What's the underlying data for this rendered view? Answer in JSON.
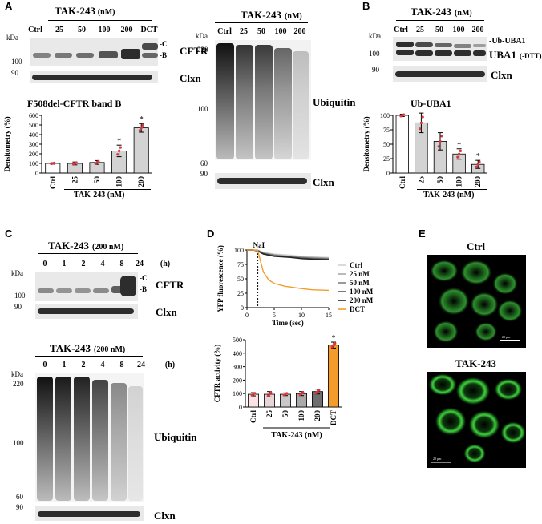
{
  "panels": {
    "A": "A",
    "B": "B",
    "C": "C",
    "D": "D",
    "E": "E"
  },
  "kda": "kDa",
  "panelA": {
    "treatment": "TAK-243",
    "unit": "(nM)",
    "lanes": [
      "Ctrl",
      "25",
      "50",
      "100",
      "200",
      "DCT"
    ],
    "markers": [
      "100",
      "90"
    ],
    "band_c": "-C",
    "band_b": "-B",
    "protein": "CFTR",
    "loading": "Clxn",
    "chart_title": "F508del-CFTR band B",
    "xlabel": "TAK-243 (nM)"
  },
  "panelA2": {
    "treatment": "TAK-243",
    "unit": "(nM)",
    "lanes": [
      "Ctrl",
      "25",
      "50",
      "100",
      "200"
    ],
    "markers": [
      "220",
      "100",
      "60",
      "90"
    ],
    "protein": "Ubiquitin",
    "loading": "Clxn"
  },
  "panelB": {
    "treatment": "TAK-243",
    "unit": "(nM)",
    "lanes": [
      "Ctrl",
      "25",
      "50",
      "100",
      "200"
    ],
    "markers": [
      "100",
      "90"
    ],
    "band_label": "-Ub-UBA1",
    "protein": "UBA1",
    "protein_note": "(-DTT)",
    "loading": "Clxn",
    "chart_title": "Ub-UBA1",
    "xlabel": "TAK-243 (nM)"
  },
  "panelC": {
    "treatment": "TAK-243",
    "unit": "(200 nM)",
    "lanes": [
      "0",
      "1",
      "2",
      "4",
      "8",
      "24"
    ],
    "time_unit": "(h)",
    "markers": [
      "100",
      "90"
    ],
    "band_c": "-C",
    "band_b": "-B",
    "protein": "CFTR",
    "loading": "Clxn"
  },
  "panelC2": {
    "treatment": "TAK-243",
    "unit": "(200 nM)",
    "lanes": [
      "0",
      "1",
      "2",
      "4",
      "8",
      "24"
    ],
    "time_unit": "(h)",
    "markers": [
      "220",
      "100",
      "60",
      "90"
    ],
    "protein": "Ubiquitin",
    "loading": "Clxn"
  },
  "panelD": {
    "nai": "NaI",
    "xlabel2": "TAK-243 (nM)"
  },
  "panelE": {
    "ctrl": "Ctrl",
    "tak": "TAK-243",
    "scale": "20 µm"
  },
  "colors": {
    "orange": "#f39c2b",
    "red": "#d9363e",
    "gray_bar": "#d3d3d3",
    "green": "#3fd13f"
  },
  "chart_data": [
    {
      "type": "bar",
      "categories": [
        "Ctrl",
        "25",
        "50",
        "100",
        "200"
      ],
      "values": [
        100,
        100,
        110,
        230,
        470
      ],
      "errors": [
        8,
        15,
        20,
        60,
        45
      ],
      "significant": [
        false,
        false,
        false,
        true,
        true
      ],
      "title": "F508del-CFTR band B",
      "xlabel": "TAK-243 (nM)",
      "ylabel": "Densitometry (%)",
      "ylim": [
        0,
        600
      ],
      "yticks": [
        0,
        100,
        200,
        300,
        400,
        500,
        600
      ]
    },
    {
      "type": "bar",
      "categories": [
        "Ctrl",
        "25",
        "50",
        "100",
        "200"
      ],
      "values": [
        100,
        87,
        55,
        33,
        15
      ],
      "errors": [
        2,
        17,
        15,
        9,
        7
      ],
      "significant": [
        false,
        false,
        false,
        true,
        true
      ],
      "title": "Ub-UBA1",
      "xlabel": "TAK-243 (nM)",
      "ylabel": "Densitometry (%)",
      "ylim": [
        0,
        100
      ],
      "yticks": [
        0,
        25,
        50,
        75,
        100
      ]
    },
    {
      "type": "line",
      "xlabel": "Time (sec)",
      "ylabel": "YFP fluorescence (%)",
      "xlim": [
        0,
        15
      ],
      "ylim": [
        0,
        100
      ],
      "xticks": [
        0,
        5,
        10,
        15
      ],
      "yticks": [
        0,
        25,
        50,
        75,
        100
      ],
      "series": [
        {
          "name": "Ctrl",
          "color": "#d0d0d0",
          "x": [
            0,
            1,
            2,
            3,
            5,
            8,
            10,
            12,
            15
          ],
          "y": [
            100,
            100,
            100,
            96,
            93,
            91,
            89,
            88,
            87
          ]
        },
        {
          "name": "25 nM",
          "color": "#a8a8a8",
          "x": [
            0,
            1,
            2,
            3,
            5,
            8,
            10,
            12,
            15
          ],
          "y": [
            100,
            100,
            99,
            95,
            92,
            89,
            88,
            87,
            86
          ]
        },
        {
          "name": "50 nM",
          "color": "#808080",
          "x": [
            0,
            1,
            2,
            3,
            5,
            8,
            10,
            12,
            15
          ],
          "y": [
            100,
            100,
            99,
            94,
            91,
            88,
            87,
            86,
            85
          ]
        },
        {
          "name": "100 nM",
          "color": "#555555",
          "x": [
            0,
            1,
            2,
            3,
            5,
            8,
            10,
            12,
            15
          ],
          "y": [
            100,
            100,
            99,
            94,
            90,
            88,
            86,
            85,
            84
          ]
        },
        {
          "name": "200 nM",
          "color": "#222222",
          "x": [
            0,
            1,
            2,
            3,
            5,
            8,
            10,
            12,
            15
          ],
          "y": [
            100,
            100,
            98,
            93,
            89,
            87,
            85,
            84,
            83
          ]
        },
        {
          "name": "DCT",
          "color": "#f39c2b",
          "x": [
            0,
            1,
            2,
            2.5,
            3,
            4,
            5,
            7,
            10,
            12,
            15
          ],
          "y": [
            100,
            100,
            99,
            80,
            62,
            48,
            42,
            37,
            33,
            31,
            30
          ]
        }
      ]
    },
    {
      "type": "bar",
      "categories": [
        "Ctrl",
        "25",
        "50",
        "100",
        "200",
        "DCT"
      ],
      "values": [
        95,
        95,
        95,
        100,
        115,
        460
      ],
      "errors": [
        12,
        20,
        10,
        15,
        18,
        22
      ],
      "significant": [
        false,
        false,
        false,
        false,
        false,
        true
      ],
      "xlabel": "TAK-243 (nM)",
      "ylabel": "CFTR activity (%)",
      "ylim": [
        0,
        500
      ],
      "yticks": [
        0,
        100,
        200,
        300,
        400,
        500
      ]
    }
  ]
}
